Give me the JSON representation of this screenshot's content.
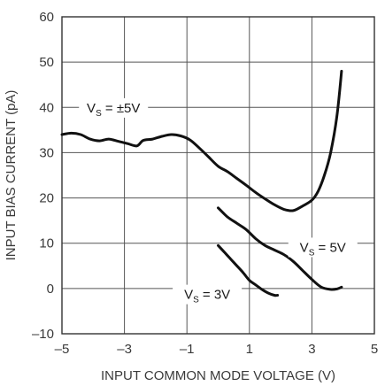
{
  "chart_data": {
    "type": "line",
    "title": "",
    "xlabel": "INPUT COMMON MODE VOLTAGE (V)",
    "ylabel": "INPUT BIAS CURRENT (pA)",
    "xlim": [
      -5,
      5
    ],
    "ylim": [
      -10,
      60
    ],
    "x_ticks": [
      -5,
      -3,
      -1,
      1,
      3,
      5
    ],
    "x_tick_labels": [
      "–5",
      "–3",
      "–1",
      "1",
      "3",
      "5"
    ],
    "y_ticks": [
      -10,
      0,
      10,
      20,
      30,
      40,
      50,
      60
    ],
    "y_tick_labels": [
      "–10",
      "0",
      "10",
      "20",
      "30",
      "40",
      "50",
      "60"
    ],
    "grid": true,
    "series": [
      {
        "name": "VS = ±5V",
        "label_main": "V",
        "label_sub": "S",
        "label_rest": " = ±5V",
        "points": [
          [
            -5.0,
            34.0
          ],
          [
            -4.7,
            34.3
          ],
          [
            -4.4,
            34.0
          ],
          [
            -4.1,
            33.0
          ],
          [
            -3.8,
            32.6
          ],
          [
            -3.5,
            33.0
          ],
          [
            -3.2,
            32.5
          ],
          [
            -2.9,
            32.0
          ],
          [
            -2.6,
            31.5
          ],
          [
            -2.4,
            32.7
          ],
          [
            -2.1,
            33.0
          ],
          [
            -1.8,
            33.6
          ],
          [
            -1.5,
            34.0
          ],
          [
            -1.2,
            33.7
          ],
          [
            -0.9,
            32.8
          ],
          [
            -0.6,
            31.0
          ],
          [
            -0.3,
            29.0
          ],
          [
            0.0,
            27.0
          ],
          [
            0.3,
            25.8
          ],
          [
            0.6,
            24.3
          ],
          [
            0.9,
            22.8
          ],
          [
            1.2,
            21.2
          ],
          [
            1.5,
            19.8
          ],
          [
            1.8,
            18.5
          ],
          [
            2.1,
            17.5
          ],
          [
            2.4,
            17.2
          ],
          [
            2.7,
            18.2
          ],
          [
            3.0,
            19.5
          ],
          [
            3.2,
            21.5
          ],
          [
            3.4,
            25.0
          ],
          [
            3.6,
            30.0
          ],
          [
            3.8,
            38.0
          ],
          [
            3.95,
            48.0
          ]
        ]
      },
      {
        "name": "VS = 5V",
        "label_main": "V",
        "label_sub": "S",
        "label_rest": " = 5V",
        "points": [
          [
            0.0,
            17.8
          ],
          [
            0.3,
            15.8
          ],
          [
            0.6,
            14.4
          ],
          [
            0.9,
            13.0
          ],
          [
            1.2,
            11.0
          ],
          [
            1.5,
            9.5
          ],
          [
            1.8,
            8.5
          ],
          [
            2.1,
            7.5
          ],
          [
            2.4,
            6.0
          ],
          [
            2.7,
            4.0
          ],
          [
            3.0,
            2.0
          ],
          [
            3.3,
            0.3
          ],
          [
            3.6,
            -0.2
          ],
          [
            3.8,
            -0.1
          ],
          [
            3.95,
            0.3
          ]
        ]
      },
      {
        "name": "VS = 3V",
        "label_main": "V",
        "label_sub": "S",
        "label_rest": " = 3V",
        "points": [
          [
            0.0,
            9.5
          ],
          [
            0.2,
            8.0
          ],
          [
            0.4,
            6.5
          ],
          [
            0.6,
            5.0
          ],
          [
            0.8,
            3.5
          ],
          [
            1.0,
            1.8
          ],
          [
            1.2,
            0.8
          ],
          [
            1.4,
            -0.2
          ],
          [
            1.6,
            -1.0
          ],
          [
            1.8,
            -1.5
          ],
          [
            1.9,
            -1.5
          ]
        ]
      }
    ]
  }
}
